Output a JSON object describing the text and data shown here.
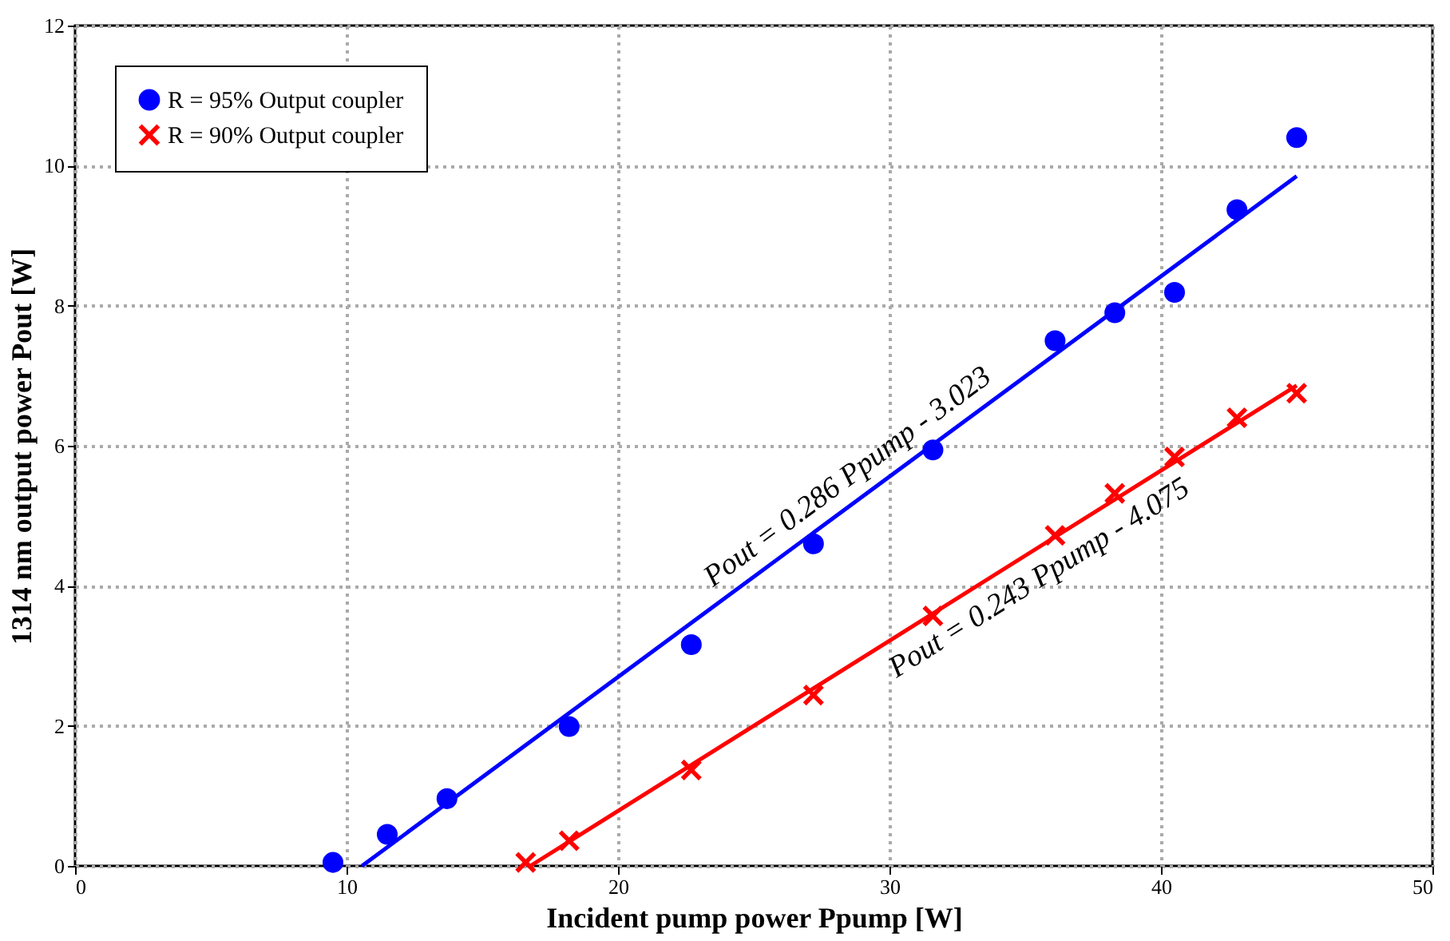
{
  "chart_data": {
    "type": "scatter",
    "xlabel": "Incident pump power Ppump [W]",
    "ylabel": "1314 nm output power Pout [W]",
    "xlim": [
      0,
      50
    ],
    "xticks": [
      0,
      10,
      20,
      30,
      40,
      50
    ],
    "ylim": [
      0,
      12
    ],
    "yticks": [
      0,
      2,
      4,
      6,
      8,
      10,
      12
    ],
    "grid": true,
    "legend": "top left",
    "series": [
      {
        "name": "R = 95% Output coupler",
        "color": "#0000ff",
        "marker": "circle",
        "x": [
          9.5,
          11.5,
          13.7,
          18.2,
          22.7,
          27.2,
          31.6,
          36.1,
          38.3,
          40.5,
          42.8,
          45.0
        ],
        "values": [
          0.05,
          0.45,
          0.96,
          1.99,
          3.16,
          4.6,
          5.94,
          7.5,
          7.9,
          8.19,
          9.37,
          10.4
        ]
      },
      {
        "name": "R = 90% Output coupler",
        "color": "#ff0000",
        "marker": "cross",
        "x": [
          16.6,
          18.2,
          22.7,
          27.2,
          31.6,
          36.1,
          38.3,
          40.5,
          42.8,
          45.0
        ],
        "values": [
          0.05,
          0.36,
          1.37,
          2.44,
          3.57,
          4.72,
          5.32,
          5.84,
          6.4,
          6.75
        ]
      },
      {
        "type": "line",
        "color": "#0000ff",
        "x": [
          10.57,
          45.0
        ],
        "values": [
          0,
          9.85
        ]
      },
      {
        "type": "line",
        "color": "#ff0000",
        "x": [
          16.77,
          45.0
        ],
        "values": [
          0,
          6.86
        ]
      }
    ],
    "annotations": [
      {
        "text": "Pout = 0.286 Ppump - 3.023",
        "x": 29.0,
        "y": 5.27
      },
      {
        "text": "Pout = 0.243 Ppump - 4.075",
        "x": 35.0,
        "y": 4.43
      }
    ]
  }
}
